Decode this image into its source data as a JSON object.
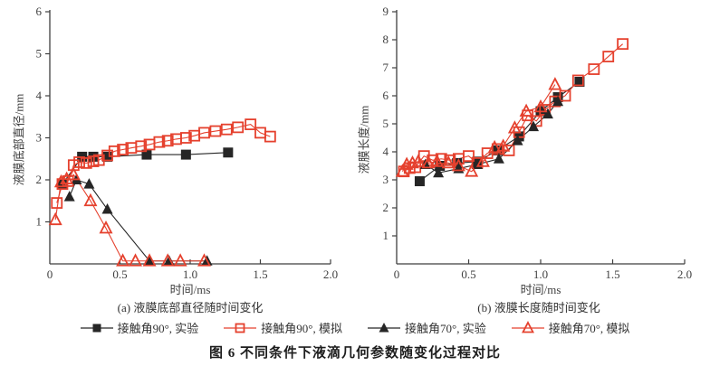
{
  "figure": {
    "caption": "图 6  不同条件下液滴几何参数随变化过程对比"
  },
  "colors": {
    "red": "#e5412e",
    "black": "#262626",
    "axis": "#3f3f3f"
  },
  "legend": [
    {
      "label": "接触角90°, 实验",
      "marker": "square",
      "variant": "filled",
      "color": "black"
    },
    {
      "label": "接触角90°, 模拟",
      "marker": "square",
      "variant": "open",
      "color": "red"
    },
    {
      "label": "接触角70°, 实验",
      "marker": "triangle",
      "variant": "filled",
      "color": "black"
    },
    {
      "label": "接触角70°, 模拟",
      "marker": "triangle",
      "variant": "open",
      "color": "red"
    }
  ],
  "chart_data": [
    {
      "type": "line",
      "subtitle": "(a) 液膜底部直径随时间变化",
      "xlabel": "时间/ms",
      "ylabel": "液膜底部直径/mm",
      "xlim": [
        0,
        2.0
      ],
      "ylim": [
        0,
        6
      ],
      "xticks": [
        "0",
        "0.5",
        "1.0",
        "1.5",
        "2.0"
      ],
      "yticks": [
        "1",
        "2",
        "3",
        "4",
        "5",
        "6"
      ],
      "grid": false,
      "series": [
        {
          "name": "接触角90°, 实验",
          "marker": "square",
          "variant": "filled",
          "color": "black",
          "points": [
            [
              0.09,
              1.9
            ],
            [
              0.23,
              2.55
            ],
            [
              0.31,
              2.55
            ],
            [
              0.41,
              2.55
            ],
            [
              0.69,
              2.6
            ],
            [
              0.97,
              2.6
            ],
            [
              1.27,
              2.65
            ]
          ]
        },
        {
          "name": "接触角90°, 模拟",
          "marker": "square",
          "variant": "open",
          "color": "red",
          "points": [
            [
              0.05,
              1.45
            ],
            [
              0.09,
              1.9
            ],
            [
              0.13,
              1.97
            ],
            [
              0.17,
              2.35
            ],
            [
              0.21,
              2.42
            ],
            [
              0.26,
              2.4
            ],
            [
              0.31,
              2.44
            ],
            [
              0.35,
              2.47
            ],
            [
              0.41,
              2.58
            ],
            [
              0.46,
              2.68
            ],
            [
              0.52,
              2.72
            ],
            [
              0.58,
              2.76
            ],
            [
              0.65,
              2.8
            ],
            [
              0.71,
              2.84
            ],
            [
              0.78,
              2.9
            ],
            [
              0.84,
              2.93
            ],
            [
              0.9,
              2.97
            ],
            [
              0.97,
              3.0
            ],
            [
              1.03,
              3.05
            ],
            [
              1.1,
              3.12
            ],
            [
              1.18,
              3.16
            ],
            [
              1.26,
              3.2
            ],
            [
              1.34,
              3.25
            ],
            [
              1.43,
              3.32
            ],
            [
              1.5,
              3.12
            ],
            [
              1.57,
              3.03
            ]
          ]
        },
        {
          "name": "接触角70°, 实验",
          "marker": "triangle",
          "variant": "filled",
          "color": "black",
          "points": [
            [
              0.14,
              1.6
            ],
            [
              0.19,
              2.0
            ],
            [
              0.28,
              1.9
            ],
            [
              0.41,
              1.3
            ],
            [
              0.71,
              0.07
            ],
            [
              0.85,
              0.07
            ],
            [
              1.12,
              0.07
            ]
          ]
        },
        {
          "name": "接触角70°, 模拟",
          "marker": "triangle",
          "variant": "open",
          "color": "red",
          "points": [
            [
              0.04,
              1.05
            ],
            [
              0.08,
              1.95
            ],
            [
              0.12,
              2.02
            ],
            [
              0.17,
              2.12
            ],
            [
              0.29,
              1.5
            ],
            [
              0.4,
              0.85
            ],
            [
              0.52,
              0.07
            ],
            [
              0.61,
              0.07
            ],
            [
              0.71,
              0.07
            ],
            [
              0.84,
              0.07
            ],
            [
              0.93,
              0.07
            ],
            [
              1.1,
              0.07
            ]
          ]
        }
      ]
    },
    {
      "type": "line",
      "subtitle": "(b) 液膜长度随时间变化",
      "xlabel": "时间/ms",
      "ylabel": "液膜长度/mm",
      "xlim": [
        0,
        2.0
      ],
      "ylim": [
        0,
        9
      ],
      "xticks": [
        "0",
        "0.5",
        "1.0",
        "1.5",
        "2.0"
      ],
      "yticks": [
        "1",
        "2",
        "3",
        "4",
        "5",
        "6",
        "7",
        "8",
        "9"
      ],
      "grid": false,
      "series": [
        {
          "name": "接触角90°, 实验",
          "marker": "square",
          "variant": "filled",
          "color": "black",
          "points": [
            [
              0.16,
              2.95
            ],
            [
              0.3,
              3.5
            ],
            [
              0.42,
              3.6
            ],
            [
              0.56,
              3.65
            ],
            [
              0.7,
              4.05
            ],
            [
              0.85,
              4.55
            ],
            [
              1.0,
              5.45
            ],
            [
              1.12,
              5.95
            ],
            [
              1.27,
              6.5
            ]
          ]
        },
        {
          "name": "接触角90°, 模拟",
          "marker": "square",
          "variant": "open",
          "color": "red",
          "points": [
            [
              0.05,
              3.3
            ],
            [
              0.09,
              3.42
            ],
            [
              0.13,
              3.45
            ],
            [
              0.19,
              3.85
            ],
            [
              0.25,
              3.7
            ],
            [
              0.31,
              3.75
            ],
            [
              0.37,
              3.7
            ],
            [
              0.43,
              3.75
            ],
            [
              0.5,
              3.85
            ],
            [
              0.56,
              3.6
            ],
            [
              0.63,
              3.95
            ],
            [
              0.7,
              4.1
            ],
            [
              0.78,
              4.05
            ],
            [
              0.85,
              4.7
            ],
            [
              0.91,
              5.3
            ],
            [
              0.97,
              5.1
            ],
            [
              1.03,
              5.5
            ],
            [
              1.1,
              5.8
            ],
            [
              1.17,
              6.0
            ],
            [
              1.26,
              6.55
            ],
            [
              1.37,
              6.95
            ],
            [
              1.47,
              7.4
            ],
            [
              1.57,
              7.85
            ]
          ]
        },
        {
          "name": "接触角70°, 实验",
          "marker": "triangle",
          "variant": "filled",
          "color": "black",
          "points": [
            [
              0.2,
              3.55
            ],
            [
              0.29,
              3.25
            ],
            [
              0.43,
              3.4
            ],
            [
              0.56,
              3.55
            ],
            [
              0.71,
              3.75
            ],
            [
              0.84,
              4.4
            ],
            [
              0.95,
              4.9
            ],
            [
              1.05,
              5.35
            ],
            [
              1.12,
              5.8
            ]
          ]
        },
        {
          "name": "接触角70°, 模拟",
          "marker": "triangle",
          "variant": "open",
          "color": "red",
          "points": [
            [
              0.04,
              3.3
            ],
            [
              0.07,
              3.55
            ],
            [
              0.11,
              3.6
            ],
            [
              0.15,
              3.65
            ],
            [
              0.22,
              3.6
            ],
            [
              0.28,
              3.65
            ],
            [
              0.36,
              3.6
            ],
            [
              0.43,
              3.5
            ],
            [
              0.52,
              3.3
            ],
            [
              0.6,
              3.65
            ],
            [
              0.68,
              4.15
            ],
            [
              0.74,
              4.2
            ],
            [
              0.82,
              4.85
            ],
            [
              0.9,
              5.45
            ],
            [
              1.0,
              5.6
            ],
            [
              1.1,
              6.4
            ]
          ]
        }
      ]
    }
  ]
}
